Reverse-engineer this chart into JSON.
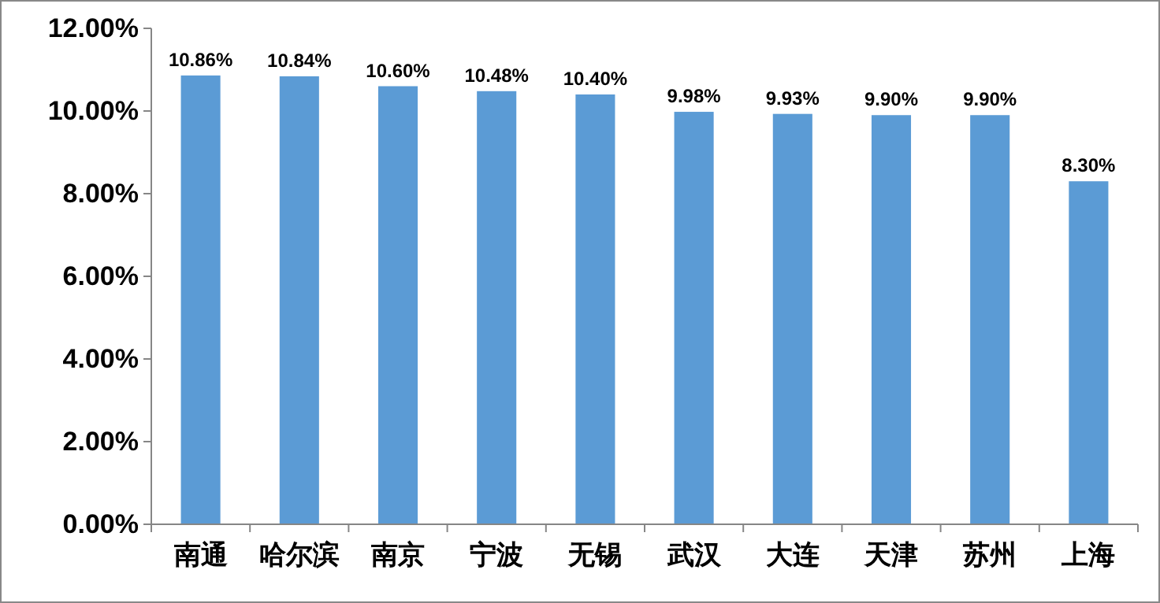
{
  "chart_data": {
    "type": "bar",
    "categories": [
      "南通",
      "哈尔滨",
      "南京",
      "宁波",
      "无锡",
      "武汉",
      "大连",
      "天津",
      "苏州",
      "上海"
    ],
    "values": [
      10.86,
      10.84,
      10.6,
      10.48,
      10.4,
      9.98,
      9.93,
      9.9,
      9.9,
      8.3
    ],
    "value_labels": [
      "10.86%",
      "10.84%",
      "10.60%",
      "10.48%",
      "10.40%",
      "9.98%",
      "9.93%",
      "9.90%",
      "9.90%",
      "8.30%"
    ],
    "color": "#5b9bd5",
    "ylim": [
      0,
      12
    ],
    "yticks": [
      {
        "value": 0,
        "label": "0.00%"
      },
      {
        "value": 2,
        "label": "2.00%"
      },
      {
        "value": 4,
        "label": "4.00%"
      },
      {
        "value": 6,
        "label": "6.00%"
      },
      {
        "value": 8,
        "label": "8.00%"
      },
      {
        "value": 10,
        "label": "10.00%"
      },
      {
        "value": 12,
        "label": "12.00%"
      }
    ],
    "grid": false
  }
}
